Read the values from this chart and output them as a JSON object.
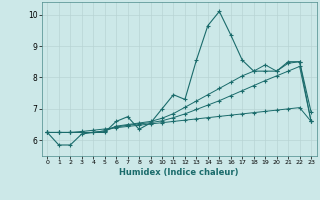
{
  "title": "",
  "xlabel": "Humidex (Indice chaleur)",
  "xlim": [
    -0.5,
    23.5
  ],
  "ylim": [
    5.5,
    10.4
  ],
  "xticks": [
    0,
    1,
    2,
    3,
    4,
    5,
    6,
    7,
    8,
    9,
    10,
    11,
    12,
    13,
    14,
    15,
    16,
    17,
    18,
    19,
    20,
    21,
    22,
    23
  ],
  "yticks": [
    6,
    7,
    8,
    9,
    10
  ],
  "bg_color": "#cce8e8",
  "line_color": "#1a6b6b",
  "grid_color": "#b8d4d4",
  "line1_x": [
    0,
    1,
    2,
    3,
    4,
    5,
    6,
    7,
    8,
    9,
    10,
    11,
    12,
    13,
    14,
    15,
    16,
    17,
    18,
    19,
    20,
    21,
    22,
    23
  ],
  "line1_y": [
    6.25,
    5.85,
    5.85,
    6.2,
    6.25,
    6.25,
    6.6,
    6.75,
    6.35,
    6.55,
    7.0,
    7.45,
    7.3,
    8.55,
    9.65,
    10.1,
    9.35,
    8.55,
    8.2,
    8.2,
    8.2,
    8.5,
    8.5,
    6.9
  ],
  "line2_x": [
    0,
    2,
    23
  ],
  "line2_y": [
    6.25,
    6.25,
    6.6
  ],
  "line2_full_x": [
    0,
    1,
    2,
    3,
    4,
    5,
    6,
    7,
    8,
    9,
    10,
    11,
    12,
    13,
    14,
    15,
    16,
    17,
    18,
    19,
    20,
    21,
    22,
    23
  ],
  "line2_full_y": [
    6.25,
    6.25,
    6.25,
    6.28,
    6.32,
    6.36,
    6.4,
    6.44,
    6.48,
    6.52,
    6.56,
    6.6,
    6.64,
    6.68,
    6.72,
    6.76,
    6.8,
    6.84,
    6.88,
    6.92,
    6.96,
    7.0,
    7.04,
    6.6
  ],
  "line3_x": [
    0,
    1,
    2,
    3,
    4,
    5,
    6,
    7,
    8,
    9,
    10,
    11,
    12,
    13,
    14,
    15,
    16,
    17,
    18,
    19,
    20,
    21,
    22,
    23
  ],
  "line3_y": [
    6.25,
    6.25,
    6.25,
    6.25,
    6.25,
    6.3,
    6.45,
    6.5,
    6.55,
    6.6,
    6.7,
    6.85,
    7.05,
    7.25,
    7.45,
    7.65,
    7.85,
    8.05,
    8.2,
    8.4,
    8.2,
    8.45,
    8.5,
    6.6
  ],
  "line4_x": [
    0,
    1,
    2,
    3,
    4,
    5,
    6,
    7,
    8,
    9,
    10,
    11,
    12,
    13,
    14,
    15,
    16,
    17,
    18,
    19,
    20,
    21,
    22,
    23
  ],
  "line4_y": [
    6.25,
    6.25,
    6.25,
    6.25,
    6.25,
    6.3,
    6.42,
    6.48,
    6.52,
    6.56,
    6.62,
    6.72,
    6.84,
    6.98,
    7.12,
    7.26,
    7.42,
    7.58,
    7.74,
    7.9,
    8.05,
    8.2,
    8.35,
    6.6
  ],
  "markersize": 2.5
}
